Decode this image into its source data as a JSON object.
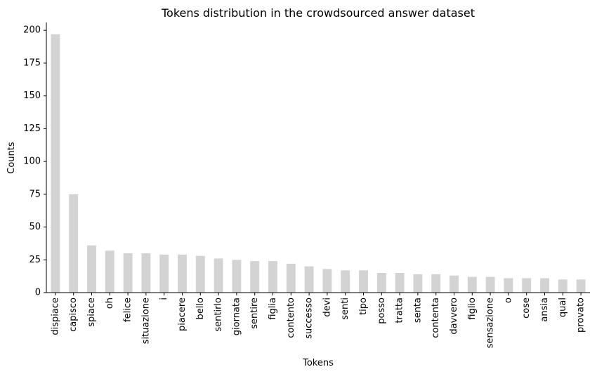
{
  "chart_data": {
    "type": "bar",
    "title": "Tokens distribution in the crowdsourced answer dataset",
    "xlabel": "Tokens",
    "ylabel": "Counts",
    "ylim": [
      0,
      206
    ],
    "yticks": [
      0,
      25,
      50,
      75,
      100,
      125,
      150,
      175,
      200
    ],
    "bar_color": "#d3d3d3",
    "grid": false,
    "categories": [
      "dispiace",
      "capisco",
      "spiace",
      "oh",
      "felice",
      "situazione",
      "i",
      "piacere",
      "bello",
      "sentirlo",
      "giornata",
      "sentire",
      "figlia",
      "contento",
      "successo",
      "devi",
      "senti",
      "tipo",
      "posso",
      "tratta",
      "senta",
      "contenta",
      "davvero",
      "figlio",
      "sensazione",
      "o",
      "cose",
      "ansia",
      "qual",
      "provato"
    ],
    "values": [
      197,
      75,
      36,
      32,
      30,
      30,
      29,
      29,
      28,
      26,
      25,
      24,
      24,
      22,
      20,
      18,
      17,
      17,
      15,
      15,
      14,
      14,
      13,
      12,
      12,
      11,
      11,
      11,
      10,
      10
    ]
  }
}
